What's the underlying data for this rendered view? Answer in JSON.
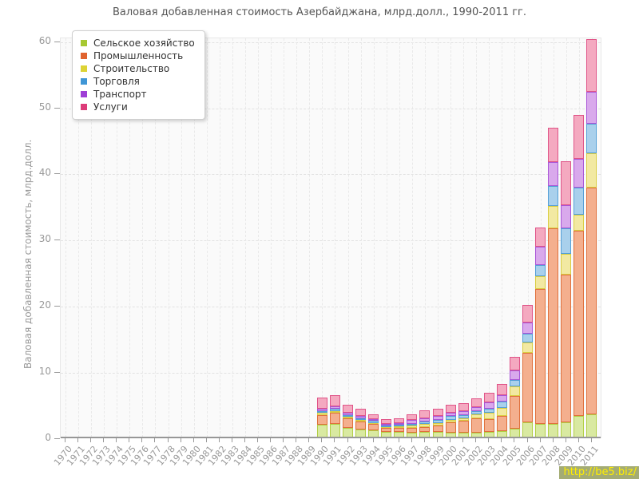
{
  "title": "Валовая добавленная стоимость Азербайджана, млрд.долл., 1990-2011 гг.",
  "watermark": "http://be5.biz/",
  "chart_data": {
    "type": "bar",
    "stacked": true,
    "title": "Валовая добавленная стоимость Азербайджана, млрд.долл., 1990-2011 гг.",
    "xlabel": "",
    "ylabel": "Валовая добавленная стоимость, млрд.долл.",
    "ylim": [
      0,
      60
    ],
    "yticks": [
      0,
      10,
      20,
      30,
      40,
      50,
      60
    ],
    "grid": true,
    "legend_position": "top-left",
    "categories": [
      "1970",
      "1971",
      "1972",
      "1973",
      "1974",
      "1975",
      "1976",
      "1977",
      "1978",
      "1979",
      "1980",
      "1981",
      "1982",
      "1983",
      "1984",
      "1985",
      "1986",
      "1987",
      "1988",
      "1989",
      "1990",
      "1991",
      "1992",
      "1993",
      "1994",
      "1995",
      "1996",
      "1997",
      "1998",
      "1999",
      "2000",
      "2001",
      "2002",
      "2003",
      "2004",
      "2005",
      "2006",
      "2007",
      "2008",
      "2009",
      "2010",
      "2011"
    ],
    "series": [
      {
        "name": "Сельское хозяйство",
        "color": "#a6c832",
        "fill": "#d9e9a1",
        "border": "#b2cf45",
        "values": [
          0,
          0,
          0,
          0,
          0,
          0,
          0,
          0,
          0,
          0,
          0,
          0,
          0,
          0,
          0,
          0,
          0,
          0,
          0,
          0,
          1.9,
          2.1,
          1.5,
          1.2,
          1.1,
          0.8,
          0.8,
          0.7,
          0.8,
          0.9,
          0.7,
          0.7,
          0.7,
          0.8,
          1.0,
          1.3,
          2.3,
          2.1,
          2.1,
          2.3,
          3.2,
          3.5
        ]
      },
      {
        "name": "Промышленность",
        "color": "#e0632f",
        "fill": "#f4af8e",
        "border": "#e0703c",
        "values": [
          0,
          0,
          0,
          0,
          0,
          0,
          0,
          0,
          0,
          0,
          0,
          0,
          0,
          0,
          0,
          0,
          0,
          0,
          0,
          0,
          1.5,
          1.6,
          1.4,
          1.2,
          1.0,
          0.7,
          0.7,
          0.8,
          0.8,
          0.9,
          1.6,
          1.8,
          2.2,
          2.0,
          2.3,
          5.0,
          10.5,
          20.3,
          29.5,
          22.3,
          28.0,
          34.2
        ]
      },
      {
        "name": "Строительство",
        "color": "#ddd335",
        "fill": "#f2e9a2",
        "border": "#d9cd42",
        "values": [
          0,
          0,
          0,
          0,
          0,
          0,
          0,
          0,
          0,
          0,
          0,
          0,
          0,
          0,
          0,
          0,
          0,
          0,
          0,
          0,
          0.3,
          0.3,
          0.2,
          0.2,
          0.1,
          0.1,
          0.2,
          0.3,
          0.5,
          0.4,
          0.4,
          0.4,
          0.6,
          0.9,
          1.2,
          1.4,
          1.6,
          2.0,
          3.4,
          3.2,
          2.4,
          5.2
        ]
      },
      {
        "name": "Торговля",
        "color": "#3f96d6",
        "fill": "#a9d0ec",
        "border": "#549fd7",
        "values": [
          0,
          0,
          0,
          0,
          0,
          0,
          0,
          0,
          0,
          0,
          0,
          0,
          0,
          0,
          0,
          0,
          0,
          0,
          0,
          0,
          0.3,
          0.3,
          0.3,
          0.3,
          0.3,
          0.2,
          0.2,
          0.3,
          0.3,
          0.4,
          0.5,
          0.5,
          0.5,
          0.7,
          0.9,
          1.0,
          1.3,
          1.6,
          3.0,
          3.8,
          4.2,
          4.5
        ]
      },
      {
        "name": "Транспорт",
        "color": "#9f3fd6",
        "fill": "#d9a9ec",
        "border": "#aa55d7",
        "values": [
          0,
          0,
          0,
          0,
          0,
          0,
          0,
          0,
          0,
          0,
          0,
          0,
          0,
          0,
          0,
          0,
          0,
          0,
          0,
          0,
          0.4,
          0.4,
          0.3,
          0.4,
          0.3,
          0.3,
          0.3,
          0.5,
          0.5,
          0.6,
          0.6,
          0.55,
          0.6,
          0.9,
          1.0,
          1.4,
          1.7,
          2.8,
          3.6,
          3.5,
          4.3,
          4.8
        ]
      },
      {
        "name": "Услуги",
        "color": "#dd3c79",
        "fill": "#f4a9c0",
        "border": "#e05488",
        "values": [
          0,
          0,
          0,
          0,
          0,
          0,
          0,
          0,
          0,
          0,
          0,
          0,
          0,
          0,
          0,
          0,
          0,
          0,
          0,
          0,
          1.6,
          1.7,
          1.2,
          1.0,
          0.7,
          0.7,
          0.7,
          0.9,
          1.2,
          1.1,
          1.1,
          1.25,
          1.3,
          1.5,
          1.7,
          2.1,
          2.6,
          2.9,
          5.2,
          6.6,
          6.6,
          8.0
        ]
      }
    ]
  }
}
